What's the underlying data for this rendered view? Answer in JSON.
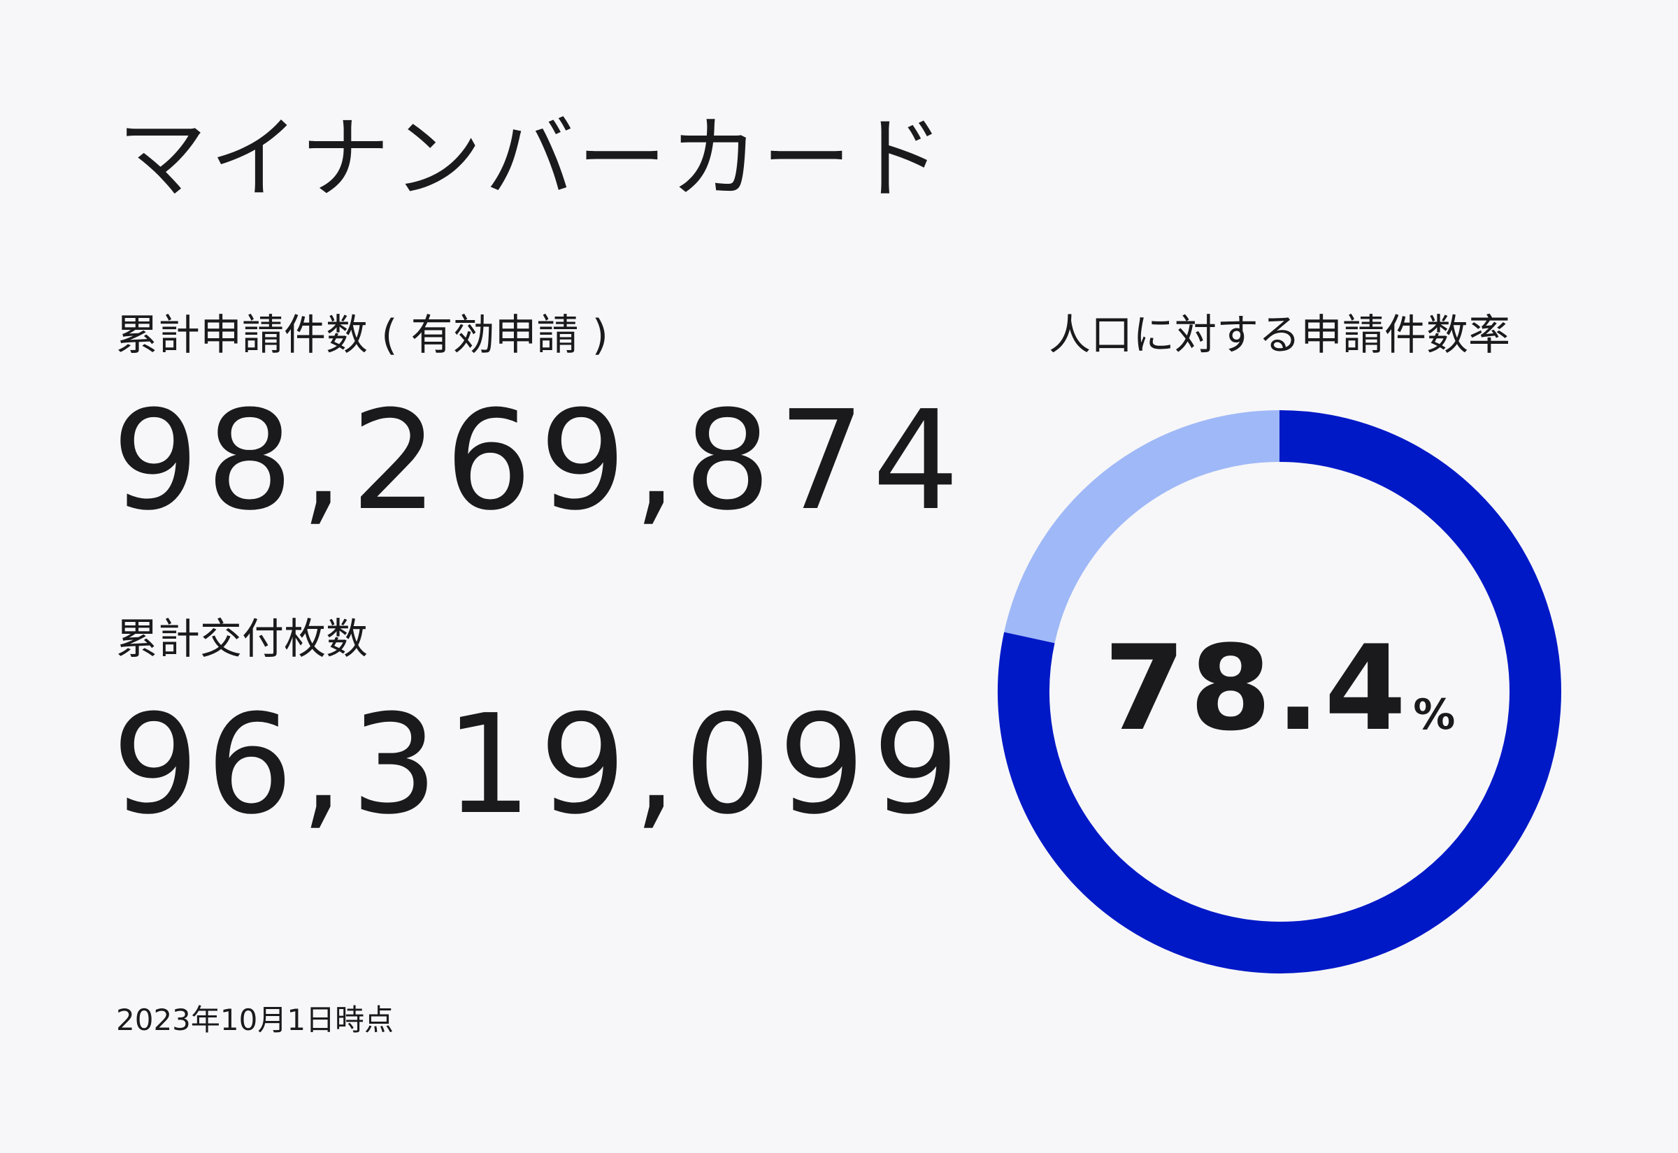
{
  "title": "マイナンバーカード",
  "applications": {
    "label": "累計申請件数 ( 有効申請 )",
    "value": "98,269,874"
  },
  "issued": {
    "label": "累計交付枚数",
    "value": "96,319,099"
  },
  "as_of": "2023年10月1日時点",
  "chart_data": {
    "type": "pie",
    "title": "人口に対する申請件数率",
    "center_value": "78.4",
    "center_unit": "%",
    "slices": [
      {
        "name": "",
        "value": 78.4,
        "color": "#0019c6"
      },
      {
        "name": "",
        "value": 21.6,
        "color": "#9fb8f7"
      }
    ]
  }
}
